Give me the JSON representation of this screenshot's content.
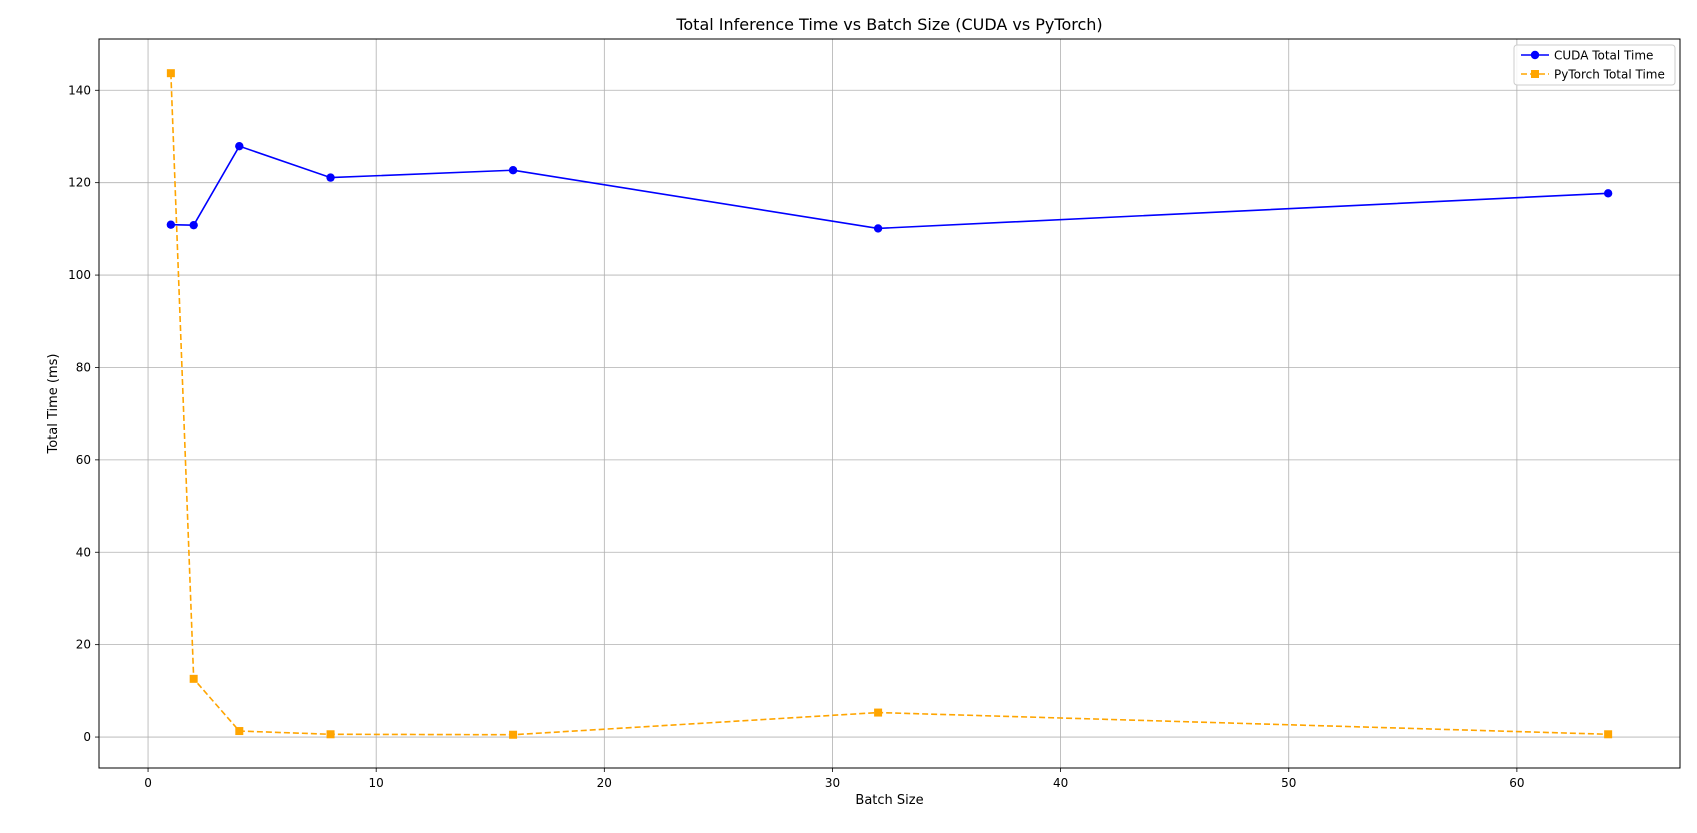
{
  "chart_data": {
    "type": "line",
    "title": "Total Inference Time vs Batch Size (CUDA vs PyTorch)",
    "xlabel": "Batch Size",
    "ylabel": "Total Time (ms)",
    "xlim": [
      -2.15,
      67.15
    ],
    "ylim": [
      -6.7,
      151.1
    ],
    "xticks": [
      0,
      10,
      20,
      30,
      40,
      50,
      60
    ],
    "yticks": [
      0,
      20,
      40,
      60,
      80,
      100,
      120,
      140
    ],
    "grid": true,
    "legend_position": "top-right",
    "x": [
      1,
      2,
      4,
      8,
      16,
      32,
      64
    ],
    "series": [
      {
        "name": "CUDA Total Time",
        "color": "#0000ff",
        "marker": "circle",
        "line_style": "solid",
        "values": [
          110.9,
          110.8,
          127.9,
          121.1,
          122.7,
          110.1,
          117.7
        ]
      },
      {
        "name": "PyTorch Total Time",
        "color": "#ffa500",
        "marker": "square",
        "line_style": "dashed",
        "values": [
          143.7,
          12.6,
          1.3,
          0.6,
          0.5,
          5.3,
          0.6
        ]
      }
    ]
  }
}
